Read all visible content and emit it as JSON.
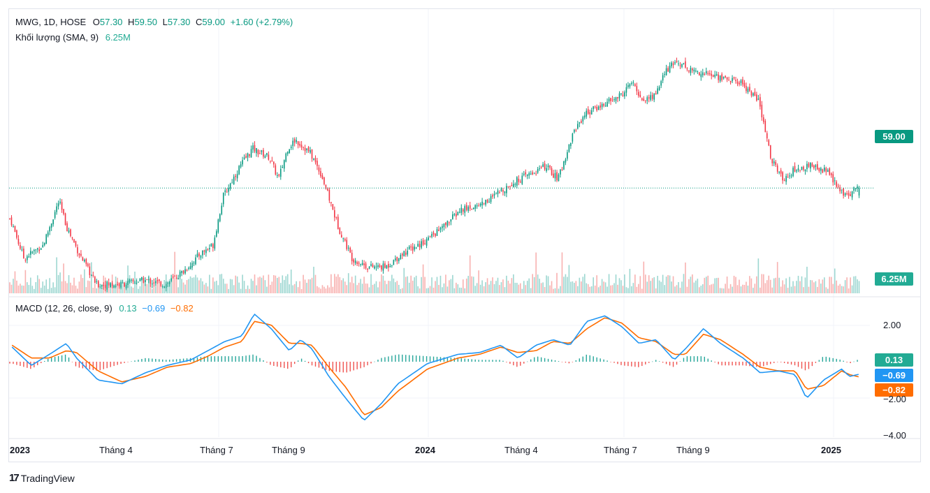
{
  "header": {
    "symbol": "MWG, 1D, HOSE",
    "open_label": "O",
    "open": "57.30",
    "high_label": "H",
    "high": "59.50",
    "low_label": "L",
    "low": "57.30",
    "close_label": "C",
    "close": "59.00",
    "change": "+1.60 (+2.79%)",
    "volume_label": "Khối lượng (SMA, 9)",
    "volume_value": "6.25M"
  },
  "macd_legend": {
    "label": "MACD (12, 26, close, 9)",
    "hist": "0.13",
    "macd": "−0.69",
    "signal": "−0.82"
  },
  "price_tags": {
    "last_price": "59.00",
    "volume": "6.25M",
    "hist": "0.13",
    "macd": "−0.69",
    "signal": "−0.82"
  },
  "macd_axis": [
    "2.00",
    "−2.00",
    "−4.00"
  ],
  "time_axis": [
    {
      "label": "2023",
      "year": true
    },
    {
      "label": "Tháng 4",
      "year": false
    },
    {
      "label": "Tháng 7",
      "year": false
    },
    {
      "label": "Tháng 9",
      "year": false
    },
    {
      "label": "2024",
      "year": true
    },
    {
      "label": "Tháng 4",
      "year": false
    },
    {
      "label": "Tháng 7",
      "year": false
    },
    {
      "label": "Tháng 9",
      "year": false
    },
    {
      "label": "2025",
      "year": true
    }
  ],
  "brand": {
    "logo": "17",
    "name": "TradingView"
  },
  "colors": {
    "up": "#089981",
    "down": "#f23645",
    "macd_line": "#2196f3",
    "signal_line": "#ff6d00",
    "hist_up": "#26a69a",
    "hist_down": "#ef5350",
    "tag_price": "#089981",
    "tag_macd": "#2196f3",
    "tag_signal": "#ff6d00"
  },
  "chart_data": {
    "type": "candlestick",
    "symbol": "MWG",
    "interval": "1D",
    "exchange": "HOSE",
    "price_path": [
      [
        "2023-01-03",
        52
      ],
      [
        "2023-01-15",
        43
      ],
      [
        "2023-02-01",
        46
      ],
      [
        "2023-02-15",
        56
      ],
      [
        "2023-02-22",
        50
      ],
      [
        "2023-03-05",
        44
      ],
      [
        "2023-03-20",
        37
      ],
      [
        "2023-04-10",
        37
      ],
      [
        "2023-05-01",
        38
      ],
      [
        "2023-05-20",
        37
      ],
      [
        "2023-06-05",
        40
      ],
      [
        "2023-06-20",
        44
      ],
      [
        "2023-07-01",
        46
      ],
      [
        "2023-07-10",
        57
      ],
      [
        "2023-07-25",
        64
      ],
      [
        "2023-08-05",
        68
      ],
      [
        "2023-08-20",
        66
      ],
      [
        "2023-08-28",
        61
      ],
      [
        "2023-09-05",
        68
      ],
      [
        "2023-09-12",
        70
      ],
      [
        "2023-09-25",
        67
      ],
      [
        "2023-10-05",
        62
      ],
      [
        "2023-10-20",
        50
      ],
      [
        "2023-11-01",
        43
      ],
      [
        "2023-11-15",
        41
      ],
      [
        "2023-12-01",
        41
      ],
      [
        "2023-12-15",
        44
      ],
      [
        "2024-01-05",
        47
      ],
      [
        "2024-01-20",
        50
      ],
      [
        "2024-02-05",
        54
      ],
      [
        "2024-02-20",
        55
      ],
      [
        "2024-03-05",
        57
      ],
      [
        "2024-03-20",
        60
      ],
      [
        "2024-04-05",
        62
      ],
      [
        "2024-04-20",
        64
      ],
      [
        "2024-05-01",
        61
      ],
      [
        "2024-05-15",
        72
      ],
      [
        "2024-05-25",
        76
      ],
      [
        "2024-06-10",
        78
      ],
      [
        "2024-06-25",
        80
      ],
      [
        "2024-07-05",
        83
      ],
      [
        "2024-07-15",
        79
      ],
      [
        "2024-07-25",
        80
      ],
      [
        "2024-08-05",
        86
      ],
      [
        "2024-08-15",
        88
      ],
      [
        "2024-08-25",
        86
      ],
      [
        "2024-09-10",
        85
      ],
      [
        "2024-09-25",
        84
      ],
      [
        "2024-10-10",
        83
      ],
      [
        "2024-10-25",
        79
      ],
      [
        "2024-11-05",
        66
      ],
      [
        "2024-11-15",
        61
      ],
      [
        "2024-11-25",
        63
      ],
      [
        "2024-12-10",
        64
      ],
      [
        "2024-12-25",
        63
      ],
      [
        "2025-01-05",
        58
      ],
      [
        "2025-01-15",
        58
      ],
      [
        "2025-01-20",
        59
      ]
    ],
    "last": {
      "open": 57.3,
      "high": 59.5,
      "low": 57.3,
      "close": 59.0,
      "change": 1.6,
      "change_pct": 2.79
    },
    "volume_sma9": 6.25,
    "volume_unit": "M",
    "macd": {
      "params": "12, 26, close, 9",
      "ticks": [
        2.0,
        -2.0,
        -4.0
      ],
      "last": {
        "histogram": 0.13,
        "macd": -0.69,
        "signal": -0.82
      },
      "macd_path": [
        [
          "2023-01-03",
          0.8
        ],
        [
          "2023-01-20",
          -0.2
        ],
        [
          "2023-02-05",
          0.4
        ],
        [
          "2023-02-20",
          1.0
        ],
        [
          "2023-03-01",
          0.2
        ],
        [
          "2023-03-20",
          -1.0
        ],
        [
          "2023-04-10",
          -1.2
        ],
        [
          "2023-05-01",
          -0.6
        ],
        [
          "2023-05-20",
          -0.2
        ],
        [
          "2023-06-10",
          0.1
        ],
        [
          "2023-06-25",
          0.6
        ],
        [
          "2023-07-10",
          1.1
        ],
        [
          "2023-07-25",
          1.4
        ],
        [
          "2023-08-05",
          2.6
        ],
        [
          "2023-08-20",
          1.8
        ],
        [
          "2023-09-05",
          0.6
        ],
        [
          "2023-09-15",
          1.2
        ],
        [
          "2023-09-25",
          0.7
        ],
        [
          "2023-10-10",
          -0.8
        ],
        [
          "2023-10-25",
          -2.0
        ],
        [
          "2023-11-10",
          -3.2
        ],
        [
          "2023-11-25",
          -2.3
        ],
        [
          "2023-12-10",
          -1.2
        ],
        [
          "2024-01-05",
          -0.1
        ],
        [
          "2024-02-01",
          0.4
        ],
        [
          "2024-02-20",
          0.5
        ],
        [
          "2024-03-10",
          0.9
        ],
        [
          "2024-03-25",
          0.2
        ],
        [
          "2024-04-10",
          0.9
        ],
        [
          "2024-04-25",
          1.2
        ],
        [
          "2024-05-10",
          0.9
        ],
        [
          "2024-05-25",
          2.2
        ],
        [
          "2024-06-10",
          2.5
        ],
        [
          "2024-06-25",
          1.9
        ],
        [
          "2024-07-10",
          1.0
        ],
        [
          "2024-07-25",
          1.2
        ],
        [
          "2024-08-10",
          0.1
        ],
        [
          "2024-08-20",
          0.7
        ],
        [
          "2024-09-05",
          1.8
        ],
        [
          "2024-09-20",
          1.0
        ],
        [
          "2024-10-10",
          0.2
        ],
        [
          "2024-10-25",
          -0.6
        ],
        [
          "2024-11-10",
          -0.5
        ],
        [
          "2024-11-25",
          -0.7
        ],
        [
          "2024-12-05",
          -2.0
        ],
        [
          "2024-12-20",
          -1.0
        ],
        [
          "2025-01-05",
          -0.4
        ],
        [
          "2025-01-12",
          -0.8
        ],
        [
          "2025-01-20",
          -0.69
        ]
      ],
      "signal_path": [
        [
          "2023-01-03",
          0.9
        ],
        [
          "2023-01-20",
          0.2
        ],
        [
          "2023-02-05",
          0.2
        ],
        [
          "2023-02-20",
          0.6
        ],
        [
          "2023-03-01",
          0.5
        ],
        [
          "2023-03-20",
          -0.5
        ],
        [
          "2023-04-10",
          -1.1
        ],
        [
          "2023-05-01",
          -0.8
        ],
        [
          "2023-05-20",
          -0.3
        ],
        [
          "2023-06-10",
          -0.1
        ],
        [
          "2023-06-25",
          0.3
        ],
        [
          "2023-07-10",
          0.8
        ],
        [
          "2023-07-25",
          1.1
        ],
        [
          "2023-08-05",
          2.2
        ],
        [
          "2023-08-20",
          2.0
        ],
        [
          "2023-09-05",
          1.0
        ],
        [
          "2023-09-15",
          1.0
        ],
        [
          "2023-09-25",
          0.9
        ],
        [
          "2023-10-10",
          -0.3
        ],
        [
          "2023-10-25",
          -1.4
        ],
        [
          "2023-11-10",
          -2.9
        ],
        [
          "2023-11-25",
          -2.5
        ],
        [
          "2023-12-10",
          -1.6
        ],
        [
          "2024-01-05",
          -0.4
        ],
        [
          "2024-02-01",
          0.2
        ],
        [
          "2024-02-20",
          0.4
        ],
        [
          "2024-03-10",
          0.8
        ],
        [
          "2024-03-25",
          0.5
        ],
        [
          "2024-04-10",
          0.6
        ],
        [
          "2024-04-25",
          1.1
        ],
        [
          "2024-05-10",
          1.0
        ],
        [
          "2024-05-25",
          1.8
        ],
        [
          "2024-06-10",
          2.4
        ],
        [
          "2024-06-25",
          2.1
        ],
        [
          "2024-07-10",
          1.3
        ],
        [
          "2024-07-25",
          1.1
        ],
        [
          "2024-08-10",
          0.4
        ],
        [
          "2024-08-20",
          0.4
        ],
        [
          "2024-09-05",
          1.5
        ],
        [
          "2024-09-20",
          1.2
        ],
        [
          "2024-10-10",
          0.4
        ],
        [
          "2024-10-25",
          -0.3
        ],
        [
          "2024-11-10",
          -0.5
        ],
        [
          "2024-11-25",
          -0.5
        ],
        [
          "2024-12-05",
          -1.5
        ],
        [
          "2024-12-20",
          -1.3
        ],
        [
          "2025-01-05",
          -0.5
        ],
        [
          "2025-01-12",
          -0.7
        ],
        [
          "2025-01-20",
          -0.82
        ]
      ]
    }
  }
}
